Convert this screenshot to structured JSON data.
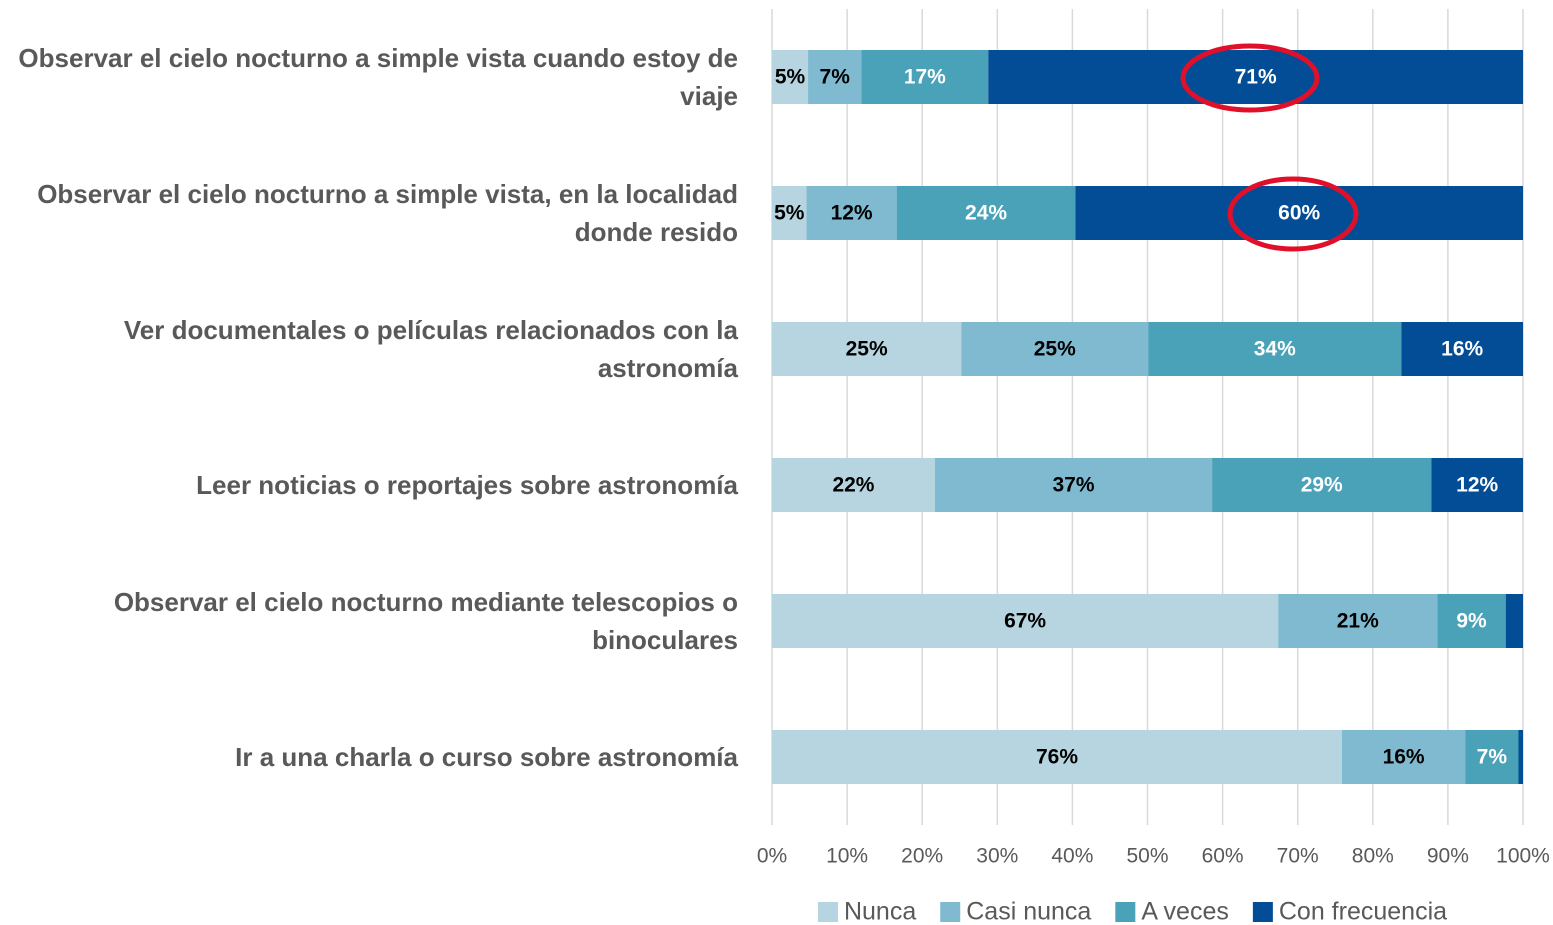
{
  "chart_data": {
    "type": "stacked_bar_horizontal",
    "categories": [
      "Observar el cielo nocturno a simple vista cuando estoy de viaje",
      "Observar el cielo nocturno a simple vista, en la localidad donde resido",
      "Ver documentales o películas relacionados con la astronomía",
      "Leer noticias o reportajes sobre astronomía",
      "Observar el cielo nocturno mediante telescopios o binoculares",
      "Ir a una charla o curso sobre astronomía"
    ],
    "series": [
      {
        "name": "Nunca",
        "color": "#b7d5e0",
        "values": [
          4.8,
          4.6,
          25.2,
          21.7,
          67.4,
          75.9
        ],
        "value_labels": [
          "5%",
          "5%",
          "25%",
          "22%",
          "67%",
          "76%"
        ]
      },
      {
        "name": "Casi nunca",
        "color": "#7fbad0",
        "values": [
          7.1,
          12.0,
          24.9,
          36.9,
          21.2,
          16.4
        ],
        "value_labels": [
          "7%",
          "12%",
          "25%",
          "37%",
          "21%",
          "16%"
        ]
      },
      {
        "name": "A veces",
        "color": "#4aa2b8",
        "values": [
          16.9,
          23.8,
          33.7,
          29.2,
          9.1,
          7.1
        ],
        "value_labels": [
          "17%",
          "24%",
          "34%",
          "29%",
          "9%",
          "7%"
        ]
      },
      {
        "name": "Con frecuencia",
        "color": "#034d96",
        "values": [
          71.2,
          59.6,
          16.2,
          12.2,
          2.3,
          0.6
        ],
        "value_labels": [
          "71%",
          "60%",
          "16%",
          "12%",
          null,
          null
        ]
      }
    ],
    "xlim": [
      0,
      100
    ],
    "xticks": [
      {
        "value": 0,
        "label": "0%"
      },
      {
        "value": 10,
        "label": "10%"
      },
      {
        "value": 20,
        "label": "20%"
      },
      {
        "value": 30,
        "label": "30%"
      },
      {
        "value": 40,
        "label": "40%"
      },
      {
        "value": 50,
        "label": "50%"
      },
      {
        "value": 60,
        "label": "60%"
      },
      {
        "value": 70,
        "label": "70%"
      },
      {
        "value": 80,
        "label": "80%"
      },
      {
        "value": 90,
        "label": "90%"
      },
      {
        "value": 100,
        "label": "100%"
      }
    ],
    "grid": true,
    "legend": "bottom"
  }
}
